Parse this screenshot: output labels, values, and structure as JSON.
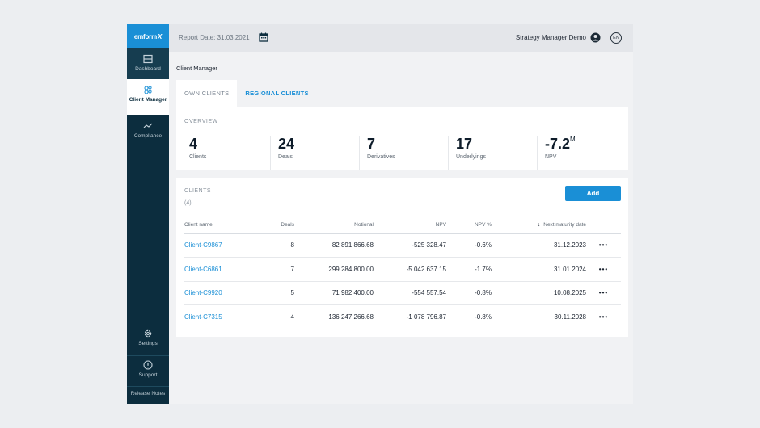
{
  "sidebar": {
    "logo": "emform",
    "logo_mark": "X",
    "items": [
      {
        "label": "Dashboard",
        "icon": "dashboard-icon"
      },
      {
        "label": "Client Manager",
        "icon": "people-icon"
      },
      {
        "label": "Compliance",
        "icon": "trend-icon"
      }
    ],
    "bottom": [
      {
        "label": "Settings",
        "icon": "gear-icon"
      },
      {
        "label": "Support",
        "icon": "help-icon"
      },
      {
        "label": "Release Notes"
      }
    ]
  },
  "topbar": {
    "report_date": "Report Date: 31.03.2021",
    "user": "Strategy Manager Demo",
    "lang": "EN"
  },
  "breadcrumb": "Client Manager",
  "tabs": [
    {
      "label": "OWN CLIENTS",
      "active": true
    },
    {
      "label": "REGIONAL CLIENTS",
      "active": false
    }
  ],
  "overview": {
    "title": "OVERVIEW",
    "stats": [
      {
        "value": "4",
        "suffix": "",
        "label": "Clients"
      },
      {
        "value": "24",
        "suffix": "",
        "label": "Deals"
      },
      {
        "value": "7",
        "suffix": "",
        "label": "Derivatives"
      },
      {
        "value": "17",
        "suffix": "",
        "label": "Underlyings"
      },
      {
        "value": "-7.2",
        "suffix": "M",
        "label": "NPV"
      }
    ]
  },
  "clients": {
    "title": "CLIENTS",
    "count": "(4)",
    "add_label": "Add",
    "columns": [
      "Client name",
      "Deals",
      "Notional",
      "NPV",
      "NPV %",
      "Next maturity date"
    ],
    "rows": [
      [
        "Client-C9867",
        "8",
        "82 891 866.68",
        "-525 328.47",
        "-0.6%",
        "31.12.2023"
      ],
      [
        "Client-C6861",
        "7",
        "299 284 800.00",
        "-5 042 637.15",
        "-1.7%",
        "31.01.2024"
      ],
      [
        "Client-C9920",
        "5",
        "71 982 400.00",
        "-554 557.54",
        "-0.8%",
        "10.08.2025"
      ],
      [
        "Client-C7315",
        "4",
        "136 247 266.68",
        "-1 078 796.87",
        "-0.8%",
        "30.11.2028"
      ]
    ],
    "row_menu": "•••"
  },
  "colors": {
    "sidebar": "#0c2d3e",
    "accent": "#1a8fd6"
  }
}
